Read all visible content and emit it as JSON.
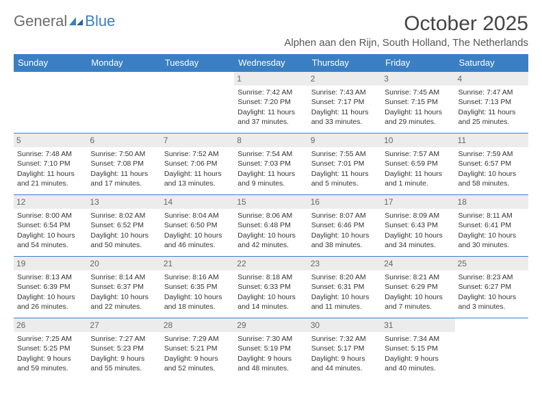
{
  "brand": {
    "name1": "General",
    "name2": "Blue"
  },
  "title": "October 2025",
  "location": "Alphen aan den Rijn, South Holland, The Netherlands",
  "colors": {
    "header_bg": "#3a7fc4",
    "header_text": "#ffffff",
    "daynum_bg": "#ececec",
    "daynum_text": "#666666",
    "border": "#3a7fc4",
    "body_text": "#333333",
    "title_text": "#444444",
    "logo_gray": "#6b6b6b"
  },
  "typography": {
    "title_fontsize": 30,
    "location_fontsize": 15,
    "header_fontsize": 13,
    "cell_fontsize": 10.5,
    "daynum_fontsize": 12
  },
  "day_headers": [
    "Sunday",
    "Monday",
    "Tuesday",
    "Wednesday",
    "Thursday",
    "Friday",
    "Saturday"
  ],
  "weeks": [
    [
      null,
      null,
      null,
      {
        "n": "1",
        "sr": "Sunrise: 7:42 AM",
        "ss": "Sunset: 7:20 PM",
        "dl": "Daylight: 11 hours and 37 minutes."
      },
      {
        "n": "2",
        "sr": "Sunrise: 7:43 AM",
        "ss": "Sunset: 7:17 PM",
        "dl": "Daylight: 11 hours and 33 minutes."
      },
      {
        "n": "3",
        "sr": "Sunrise: 7:45 AM",
        "ss": "Sunset: 7:15 PM",
        "dl": "Daylight: 11 hours and 29 minutes."
      },
      {
        "n": "4",
        "sr": "Sunrise: 7:47 AM",
        "ss": "Sunset: 7:13 PM",
        "dl": "Daylight: 11 hours and 25 minutes."
      }
    ],
    [
      {
        "n": "5",
        "sr": "Sunrise: 7:48 AM",
        "ss": "Sunset: 7:10 PM",
        "dl": "Daylight: 11 hours and 21 minutes."
      },
      {
        "n": "6",
        "sr": "Sunrise: 7:50 AM",
        "ss": "Sunset: 7:08 PM",
        "dl": "Daylight: 11 hours and 17 minutes."
      },
      {
        "n": "7",
        "sr": "Sunrise: 7:52 AM",
        "ss": "Sunset: 7:06 PM",
        "dl": "Daylight: 11 hours and 13 minutes."
      },
      {
        "n": "8",
        "sr": "Sunrise: 7:54 AM",
        "ss": "Sunset: 7:03 PM",
        "dl": "Daylight: 11 hours and 9 minutes."
      },
      {
        "n": "9",
        "sr": "Sunrise: 7:55 AM",
        "ss": "Sunset: 7:01 PM",
        "dl": "Daylight: 11 hours and 5 minutes."
      },
      {
        "n": "10",
        "sr": "Sunrise: 7:57 AM",
        "ss": "Sunset: 6:59 PM",
        "dl": "Daylight: 11 hours and 1 minute."
      },
      {
        "n": "11",
        "sr": "Sunrise: 7:59 AM",
        "ss": "Sunset: 6:57 PM",
        "dl": "Daylight: 10 hours and 58 minutes."
      }
    ],
    [
      {
        "n": "12",
        "sr": "Sunrise: 8:00 AM",
        "ss": "Sunset: 6:54 PM",
        "dl": "Daylight: 10 hours and 54 minutes."
      },
      {
        "n": "13",
        "sr": "Sunrise: 8:02 AM",
        "ss": "Sunset: 6:52 PM",
        "dl": "Daylight: 10 hours and 50 minutes."
      },
      {
        "n": "14",
        "sr": "Sunrise: 8:04 AM",
        "ss": "Sunset: 6:50 PM",
        "dl": "Daylight: 10 hours and 46 minutes."
      },
      {
        "n": "15",
        "sr": "Sunrise: 8:06 AM",
        "ss": "Sunset: 6:48 PM",
        "dl": "Daylight: 10 hours and 42 minutes."
      },
      {
        "n": "16",
        "sr": "Sunrise: 8:07 AM",
        "ss": "Sunset: 6:46 PM",
        "dl": "Daylight: 10 hours and 38 minutes."
      },
      {
        "n": "17",
        "sr": "Sunrise: 8:09 AM",
        "ss": "Sunset: 6:43 PM",
        "dl": "Daylight: 10 hours and 34 minutes."
      },
      {
        "n": "18",
        "sr": "Sunrise: 8:11 AM",
        "ss": "Sunset: 6:41 PM",
        "dl": "Daylight: 10 hours and 30 minutes."
      }
    ],
    [
      {
        "n": "19",
        "sr": "Sunrise: 8:13 AM",
        "ss": "Sunset: 6:39 PM",
        "dl": "Daylight: 10 hours and 26 minutes."
      },
      {
        "n": "20",
        "sr": "Sunrise: 8:14 AM",
        "ss": "Sunset: 6:37 PM",
        "dl": "Daylight: 10 hours and 22 minutes."
      },
      {
        "n": "21",
        "sr": "Sunrise: 8:16 AM",
        "ss": "Sunset: 6:35 PM",
        "dl": "Daylight: 10 hours and 18 minutes."
      },
      {
        "n": "22",
        "sr": "Sunrise: 8:18 AM",
        "ss": "Sunset: 6:33 PM",
        "dl": "Daylight: 10 hours and 14 minutes."
      },
      {
        "n": "23",
        "sr": "Sunrise: 8:20 AM",
        "ss": "Sunset: 6:31 PM",
        "dl": "Daylight: 10 hours and 11 minutes."
      },
      {
        "n": "24",
        "sr": "Sunrise: 8:21 AM",
        "ss": "Sunset: 6:29 PM",
        "dl": "Daylight: 10 hours and 7 minutes."
      },
      {
        "n": "25",
        "sr": "Sunrise: 8:23 AM",
        "ss": "Sunset: 6:27 PM",
        "dl": "Daylight: 10 hours and 3 minutes."
      }
    ],
    [
      {
        "n": "26",
        "sr": "Sunrise: 7:25 AM",
        "ss": "Sunset: 5:25 PM",
        "dl": "Daylight: 9 hours and 59 minutes."
      },
      {
        "n": "27",
        "sr": "Sunrise: 7:27 AM",
        "ss": "Sunset: 5:23 PM",
        "dl": "Daylight: 9 hours and 55 minutes."
      },
      {
        "n": "28",
        "sr": "Sunrise: 7:29 AM",
        "ss": "Sunset: 5:21 PM",
        "dl": "Daylight: 9 hours and 52 minutes."
      },
      {
        "n": "29",
        "sr": "Sunrise: 7:30 AM",
        "ss": "Sunset: 5:19 PM",
        "dl": "Daylight: 9 hours and 48 minutes."
      },
      {
        "n": "30",
        "sr": "Sunrise: 7:32 AM",
        "ss": "Sunset: 5:17 PM",
        "dl": "Daylight: 9 hours and 44 minutes."
      },
      {
        "n": "31",
        "sr": "Sunrise: 7:34 AM",
        "ss": "Sunset: 5:15 PM",
        "dl": "Daylight: 9 hours and 40 minutes."
      },
      null
    ]
  ]
}
